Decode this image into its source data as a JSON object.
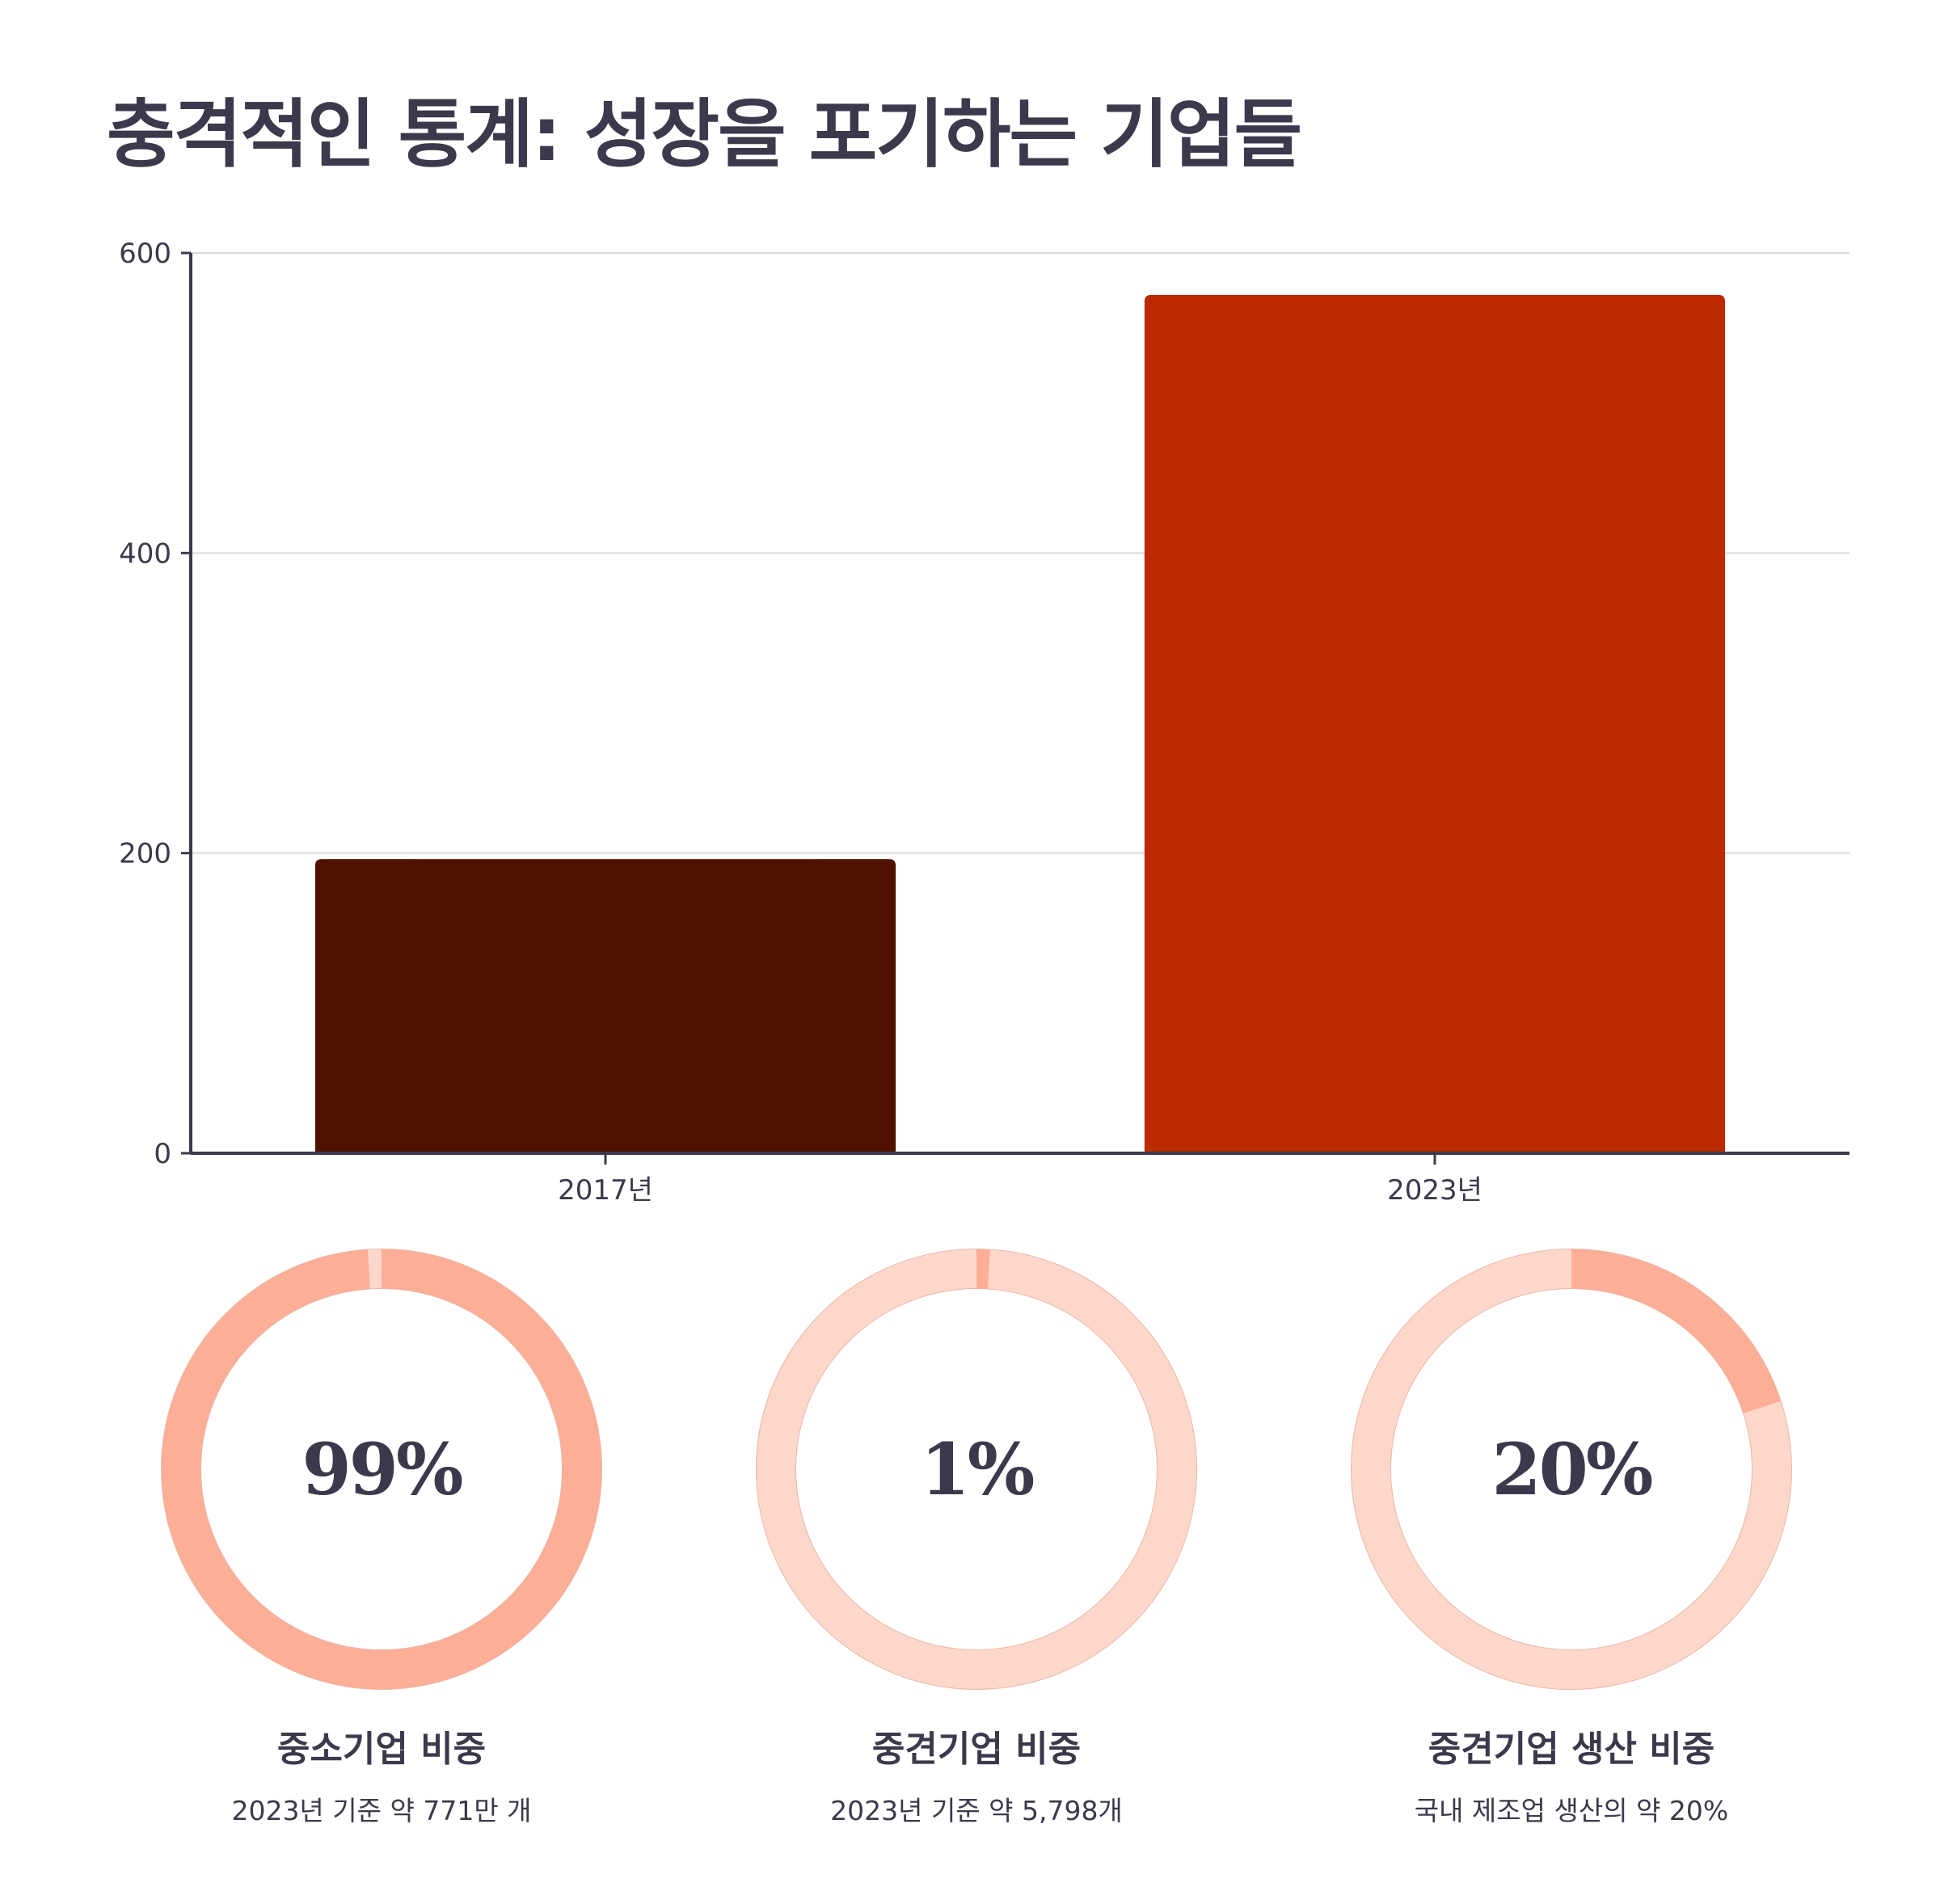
{
  "title": "충격적인 통계: 성장을 포기하는 기업들",
  "chart_data": [
    {
      "type": "bar",
      "categories": [
        "2017년",
        "2023년"
      ],
      "values": [
        196,
        572
      ],
      "ylim": [
        0,
        600
      ],
      "yticks": [
        0,
        200,
        400,
        600
      ],
      "grid": true,
      "colors": [
        "#4f1200",
        "#bb2a00"
      ]
    },
    {
      "type": "pie",
      "variant": "donut",
      "value_label": "99%",
      "value": 99,
      "label": "중소기업 비중",
      "sublabel": "2023년 기준 약 771만 개",
      "fill_color": "#fcae96",
      "track_color": "#fdd7ca"
    },
    {
      "type": "pie",
      "variant": "donut",
      "value_label": "1%",
      "value": 1,
      "label": "중견기업 비중",
      "sublabel": "2023년 기준 약 5,798개",
      "fill_color": "#fcae96",
      "track_color": "#fdd7ca"
    },
    {
      "type": "pie",
      "variant": "donut",
      "value_label": "20%",
      "value": 20,
      "label": "중견기업 생산 비중",
      "sublabel": "국내 제조업 생산의 약 20%",
      "fill_color": "#fcae96",
      "track_color": "#fdd7ca"
    }
  ]
}
